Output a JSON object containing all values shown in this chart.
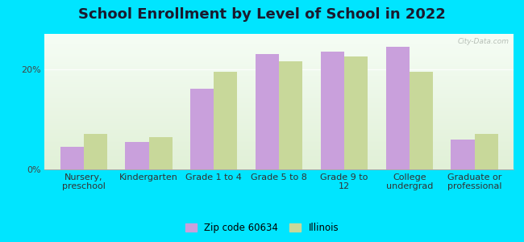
{
  "title": "School Enrollment by Level of School in 2022",
  "categories": [
    "Nursery,\npreschool",
    "Kindergarten",
    "Grade 1 to 4",
    "Grade 5 to 8",
    "Grade 9 to\n12",
    "College\nundergrad",
    "Graduate or\nprofessional"
  ],
  "zip_values": [
    4.5,
    5.5,
    16.0,
    23.0,
    23.5,
    24.5,
    6.0
  ],
  "illinois_values": [
    7.0,
    6.5,
    19.5,
    21.5,
    22.5,
    19.5,
    7.0
  ],
  "zip_color": "#c9a0dc",
  "illinois_color": "#c8d89a",
  "ylim": [
    0,
    27
  ],
  "yticks": [
    0,
    20
  ],
  "ytick_labels": [
    "0%",
    "20%"
  ],
  "background_color": "#00e5ff",
  "title_fontsize": 13,
  "tick_fontsize": 8,
  "legend_zip_label": "Zip code 60634",
  "legend_illinois_label": "Illinois",
  "watermark": "City-Data.com"
}
